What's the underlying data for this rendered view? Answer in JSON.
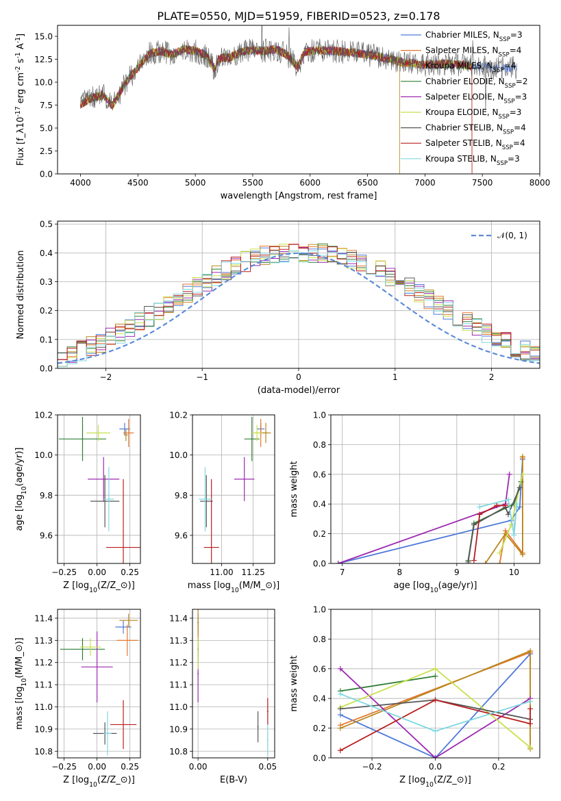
{
  "figure": {
    "title": "PLATE=0550, MJD=51959, FIBERID=0523, z=0.178"
  },
  "colors": {
    "models": [
      "#4e79d9",
      "#e4762c",
      "#b8861b",
      "#2e7d32",
      "#9c27b0",
      "#c8e04a",
      "#555555",
      "#b71c1c",
      "#7fd8e0"
    ],
    "grid": "#b0b0b0",
    "gaussian": "#5b8bd9"
  },
  "chart_data": [
    {
      "type": "line",
      "id": "spectrum",
      "xlabel": "wavelength [Angstrom, rest frame]",
      "ylabel": "Flux [f$_\\lambda$10$^{-17}$ erg cm$^{-2}$ s$^{-1}$ A$^{-1}$]",
      "xlim": [
        3800,
        8000
      ],
      "ylim": [
        0,
        16.2
      ],
      "xticks": [
        4000,
        4500,
        5000,
        5500,
        6000,
        6500,
        7000,
        7500,
        8000
      ],
      "yticks": [
        0.0,
        2.5,
        5.0,
        7.5,
        10.0,
        12.5,
        15.0
      ],
      "ytick_labels": [
        "0.0",
        "2.5",
        "5.0",
        "7.5",
        "10.0",
        "12.5",
        "15.0"
      ],
      "grid": false,
      "legend_position": "right",
      "legend": [
        {
          "label": "Chabrier MILES, N$_{SSP}$=3"
        },
        {
          "label": "Salpeter MILES, N$_{SSP}$=4"
        },
        {
          "label": "Kroupa MILES, N$_{SSP}$=4"
        },
        {
          "label": "Chabrier ELODIE, N$_{SSP}$=2"
        },
        {
          "label": "Salpeter ELODIE, N$_{SSP}$=3"
        },
        {
          "label": "Kroupa ELODIE, N$_{SSP}$=3"
        },
        {
          "label": "Chabrier STELIB, N$_{SSP}$=4"
        },
        {
          "label": "Salpeter STELIB, N$_{SSP}$=4"
        },
        {
          "label": "Kroupa STELIB, N$_{SSP}$=3"
        }
      ],
      "continuum": [
        [
          4000,
          7.6
        ],
        [
          4100,
          8.3
        ],
        [
          4200,
          8.6
        ],
        [
          4280,
          7.4
        ],
        [
          4300,
          7.9
        ],
        [
          4400,
          10.1
        ],
        [
          4500,
          11.6
        ],
        [
          4600,
          13.1
        ],
        [
          4700,
          13.4
        ],
        [
          4800,
          13.0
        ],
        [
          4900,
          13.6
        ],
        [
          5000,
          13.4
        ],
        [
          5100,
          12.9
        ],
        [
          5170,
          11.3
        ],
        [
          5200,
          12.6
        ],
        [
          5300,
          12.7
        ],
        [
          5400,
          13.3
        ],
        [
          5500,
          13.5
        ],
        [
          5600,
          13.4
        ],
        [
          5700,
          13.6
        ],
        [
          5800,
          13.0
        ],
        [
          5893,
          11.6
        ],
        [
          5950,
          13.3
        ],
        [
          6050,
          13.5
        ],
        [
          6200,
          13.4
        ],
        [
          6400,
          13.2
        ],
        [
          6600,
          12.8
        ],
        [
          6800,
          12.2
        ],
        [
          7000,
          11.9
        ],
        [
          7200,
          12.0
        ],
        [
          7400,
          11.8
        ],
        [
          7600,
          11.5
        ],
        [
          7800,
          11.6
        ]
      ],
      "visible_range_by_series": [
        [
          4000,
          7800
        ],
        [
          4000,
          7410
        ],
        [
          4000,
          6780
        ],
        [
          4000,
          7400
        ],
        [
          4000,
          7400
        ],
        [
          4000,
          7400
        ],
        [
          4000,
          7800
        ],
        [
          4000,
          7410
        ],
        [
          4000,
          7400
        ]
      ]
    },
    {
      "type": "histogram",
      "id": "residuals",
      "xlabel": "(data-model)/error",
      "ylabel": "Normed distribution",
      "xlim": [
        -2.5,
        2.5
      ],
      "ylim": [
        0,
        0.51
      ],
      "xticks": [
        -2,
        -1,
        0,
        1,
        2
      ],
      "xtick_labels": [
        "−2",
        "−1",
        "0",
        "1",
        "2"
      ],
      "yticks": [
        0.0,
        0.1,
        0.2,
        0.3,
        0.4,
        0.5
      ],
      "ytick_labels": [
        "0.0",
        "0.1",
        "0.2",
        "0.3",
        "0.4",
        "0.5"
      ],
      "grid": true,
      "bin_width": 0.1,
      "legend_position": "top-right",
      "legend": [
        {
          "label": "𝒩(0, 1)"
        }
      ],
      "base_density": [
        0.018,
        0.02,
        0.024,
        0.032,
        0.04,
        0.05,
        0.06,
        0.075,
        0.09,
        0.105,
        0.12,
        0.14,
        0.16,
        0.18,
        0.2,
        0.22,
        0.24,
        0.26,
        0.28,
        0.3,
        0.32,
        0.34,
        0.355,
        0.37,
        0.38,
        0.39,
        0.395,
        0.4,
        0.4,
        0.4,
        0.4,
        0.4,
        0.395,
        0.39,
        0.38,
        0.37,
        0.355,
        0.34,
        0.32,
        0.3,
        0.28,
        0.26,
        0.24,
        0.22,
        0.2,
        0.18,
        0.16,
        0.14,
        0.12,
        0.105,
        0.09,
        0.075,
        0.06,
        0.05,
        0.04,
        0.032,
        0.026,
        0.022,
        0.02
      ]
    },
    {
      "type": "scatter",
      "id": "age-vs-Z",
      "xlabel": "Z [log$_{10}$(Z/Z$_\\odot$)]",
      "ylabel": "age  [log$_{10}$(age/yr)]",
      "xlim": [
        -0.3,
        0.33
      ],
      "ylim": [
        9.46,
        10.2
      ],
      "xticks": [
        -0.25,
        0.0,
        0.25
      ],
      "xtick_labels": [
        "−0.25",
        "0.00",
        "0.25"
      ],
      "yticks": [
        9.6,
        9.8,
        10.0,
        10.2
      ],
      "ytick_labels": [
        "9.6",
        "9.8",
        "10.0",
        "10.2"
      ],
      "grid": true,
      "points": [
        {
          "x": 0.21,
          "y": 10.13,
          "xerr": 0.04,
          "yerr": 0.03
        },
        {
          "x": 0.24,
          "y": 10.11,
          "xerr": 0.04,
          "yerr": 0.07
        },
        {
          "x": 0.22,
          "y": 10.1,
          "xerr": 0.015,
          "yerr": 0.03
        },
        {
          "x": -0.11,
          "y": 10.08,
          "xerr": 0.18,
          "yerr": 0.11
        },
        {
          "x": 0.05,
          "y": 9.88,
          "xerr": 0.12,
          "yerr": 0.11
        },
        {
          "x": 0.01,
          "y": 10.11,
          "xerr": 0.09,
          "yerr": 0.04
        },
        {
          "x": 0.06,
          "y": 9.77,
          "xerr": 0.11,
          "yerr": 0.13
        },
        {
          "x": 0.2,
          "y": 9.54,
          "xerr": 0.13,
          "yerr": 0.34
        },
        {
          "x": 0.09,
          "y": 9.78,
          "xerr": 0.04,
          "yerr": 0.16
        }
      ]
    },
    {
      "type": "scatter",
      "id": "age-vs-mass",
      "xlabel": "mass [log$_{10}$(M/M$_\\odot$)]",
      "ylabel": "",
      "xlim": [
        10.77,
        11.42
      ],
      "ylim": [
        9.46,
        10.2
      ],
      "xticks": [
        11.0,
        11.25
      ],
      "xtick_labels": [
        "11.00",
        "11.25"
      ],
      "yticks": [
        9.6,
        9.8,
        10.0,
        10.2
      ],
      "ytick_labels": [
        "9.6",
        "9.8",
        "10.0",
        "10.2"
      ],
      "grid": true,
      "points": [
        {
          "x": 11.31,
          "y": 10.13,
          "xerr": 0.03,
          "yerr": 0.03
        },
        {
          "x": 11.31,
          "y": 10.11,
          "xerr": 0.05,
          "yerr": 0.07
        },
        {
          "x": 11.35,
          "y": 10.11,
          "xerr": 0.04,
          "yerr": 0.05
        },
        {
          "x": 11.24,
          "y": 10.08,
          "xerr": 0.06,
          "yerr": 0.11
        },
        {
          "x": 11.18,
          "y": 9.88,
          "xerr": 0.08,
          "yerr": 0.11
        },
        {
          "x": 11.28,
          "y": 10.11,
          "xerr": 0.04,
          "yerr": 0.04
        },
        {
          "x": 10.88,
          "y": 9.77,
          "xerr": 0.05,
          "yerr": 0.13
        },
        {
          "x": 10.92,
          "y": 9.54,
          "xerr": 0.06,
          "yerr": 0.34
        },
        {
          "x": 10.87,
          "y": 9.78,
          "xerr": 0.05,
          "yerr": 0.16
        }
      ]
    },
    {
      "type": "line",
      "id": "mass-weight-vs-age",
      "xlabel": "age  [log$_{10}$(age/yr)]",
      "ylabel": "mass weight",
      "xlim": [
        6.8,
        10.45
      ],
      "ylim": [
        0,
        1.0
      ],
      "xticks": [
        7,
        8,
        9,
        10
      ],
      "xtick_labels": [
        "7",
        "8",
        "9",
        "10"
      ],
      "yticks": [
        0.0,
        0.2,
        0.4,
        0.6,
        0.8,
        1.0
      ],
      "ytick_labels": [
        "0.0",
        "0.2",
        "0.4",
        "0.6",
        "0.8",
        "1.0"
      ],
      "grid": true,
      "series": [
        {
          "x": [
            6.93,
            9.95,
            10.1,
            10.15
          ],
          "y": [
            0.0,
            0.29,
            0.38,
            0.7
          ]
        },
        {
          "x": [
            9.75,
            9.85,
            10.15,
            10.15
          ],
          "y": [
            0.0,
            0.22,
            0.07,
            0.71
          ]
        },
        {
          "x": [
            9.5,
            9.85,
            10.15,
            10.15
          ],
          "y": [
            0.0,
            0.2,
            0.06,
            0.72
          ]
        },
        {
          "x": [
            9.2,
            9.3,
            10.0,
            10.12
          ],
          "y": [
            0.02,
            0.27,
            0.4,
            0.55
          ]
        },
        {
          "x": [
            6.93,
            9.85,
            9.92
          ],
          "y": [
            0.0,
            0.4,
            0.6
          ]
        },
        {
          "x": [
            9.75,
            9.95,
            10.15
          ],
          "y": [
            0.07,
            0.26,
            0.6
          ]
        },
        {
          "x": [
            9.2,
            9.3,
            9.85,
            9.9,
            10.1
          ],
          "y": [
            0.01,
            0.26,
            0.38,
            0.33,
            0.51
          ]
        },
        {
          "x": [
            9.3,
            9.4,
            9.7,
            9.85
          ],
          "y": [
            0.02,
            0.33,
            0.39,
            0.39
          ]
        },
        {
          "x": [
            9.4,
            9.9,
            10.0,
            10.05
          ],
          "y": [
            0.38,
            0.43,
            0.19,
            0.4
          ]
        }
      ]
    },
    {
      "type": "scatter",
      "id": "mass-vs-Z",
      "xlabel": "Z [log$_{10}$(Z/Z$_\\odot$)]",
      "ylabel": "mass [log$_{10}$(M/M$_\\odot$)]",
      "xlim": [
        -0.3,
        0.33
      ],
      "ylim": [
        10.77,
        11.44
      ],
      "xticks": [
        -0.25,
        0.0,
        0.25
      ],
      "xtick_labels": [
        "−0.25",
        "0.00",
        "0.25"
      ],
      "yticks": [
        10.8,
        10.9,
        11.0,
        11.1,
        11.2,
        11.3,
        11.4
      ],
      "ytick_labels": [
        "10.8",
        "10.9",
        "11.0",
        "11.1",
        "11.2",
        "11.3",
        "11.4"
      ],
      "grid": true,
      "points": [
        {
          "x": 0.2,
          "y": 11.36,
          "xerr": 0.06,
          "yerr": 0.03
        },
        {
          "x": 0.23,
          "y": 11.3,
          "xerr": 0.08,
          "yerr": 0.07
        },
        {
          "x": 0.24,
          "y": 11.39,
          "xerr": 0.07,
          "yerr": 0.03
        },
        {
          "x": -0.11,
          "y": 11.26,
          "xerr": 0.17,
          "yerr": 0.05
        },
        {
          "x": 0.0,
          "y": 11.18,
          "xerr": 0.12,
          "yerr": 0.16
        },
        {
          "x": -0.05,
          "y": 11.27,
          "xerr": 0.08,
          "yerr": 0.04
        },
        {
          "x": 0.06,
          "y": 10.88,
          "xerr": 0.09,
          "yerr": 0.05
        },
        {
          "x": 0.2,
          "y": 10.92,
          "xerr": 0.1,
          "yerr": 0.11
        },
        {
          "x": 0.08,
          "y": 10.88,
          "xerr": 0.03,
          "yerr": 0.1
        }
      ]
    },
    {
      "type": "scatter",
      "id": "mass-vs-EBV",
      "xlabel": "E(B-V)",
      "ylabel": "",
      "xlim": [
        -0.004,
        0.055
      ],
      "ylim": [
        10.77,
        11.44
      ],
      "xticks": [
        0.0,
        0.05
      ],
      "xtick_labels": [
        "0.00",
        "0.05"
      ],
      "yticks": [
        10.8,
        10.9,
        11.0,
        11.1,
        11.2,
        11.3,
        11.4
      ],
      "ytick_labels": [
        "10.8",
        "10.9",
        "11.0",
        "11.1",
        "11.2",
        "11.3",
        "11.4"
      ],
      "grid": true,
      "points": [
        {
          "x": 0.0,
          "y": 11.38,
          "xerr": 0.0005,
          "yerr": 0.04
        },
        {
          "x": 0.0,
          "y": 11.3,
          "xerr": 0.0005,
          "yerr": 0.07
        },
        {
          "x": 0.0,
          "y": 11.38,
          "xerr": 0.0005,
          "yerr": 0.06
        },
        {
          "x": 0.0,
          "y": 11.26,
          "xerr": 0.0005,
          "yerr": 0.05
        },
        {
          "x": 0.0,
          "y": 11.15,
          "xerr": 0.0005,
          "yerr": 0.13
        },
        {
          "x": 0.0,
          "y": 11.24,
          "xerr": 0.0005,
          "yerr": 0.07
        },
        {
          "x": 0.043,
          "y": 10.91,
          "xerr": 0.0005,
          "yerr": 0.07
        },
        {
          "x": 0.05,
          "y": 10.98,
          "xerr": 0.0005,
          "yerr": 0.06
        },
        {
          "x": 0.05,
          "y": 10.85,
          "xerr": 0.0005,
          "yerr": 0.07
        }
      ]
    },
    {
      "type": "line",
      "id": "mass-weight-vs-Z",
      "xlabel": "Z [log$_{10}$(Z/Z$_\\odot$)]",
      "ylabel": "mass weight",
      "xlim": [
        -0.33,
        0.33
      ],
      "ylim": [
        0,
        1.0
      ],
      "xticks": [
        -0.2,
        0.0,
        0.2
      ],
      "xtick_labels": [
        "−0.2",
        "0.0",
        "0.2"
      ],
      "yticks": [
        0.0,
        0.2,
        0.4,
        0.6,
        0.8,
        1.0
      ],
      "ytick_labels": [
        "0.0",
        "0.2",
        "0.4",
        "0.6",
        "0.8",
        "1.0"
      ],
      "grid": true,
      "series": [
        {
          "x": [
            -0.3,
            0.0,
            0.3
          ],
          "y": [
            0.29,
            0.0,
            0.7
          ]
        },
        {
          "x": [
            -0.3,
            0.3,
            0.3
          ],
          "y": [
            0.22,
            0.71,
            0.07
          ]
        },
        {
          "x": [
            -0.3,
            0.3,
            0.3
          ],
          "y": [
            0.2,
            0.72,
            0.06
          ]
        },
        {
          "x": [
            -0.3,
            0.0
          ],
          "y": [
            0.45,
            0.55
          ]
        },
        {
          "x": [
            -0.3,
            0.0,
            0.3
          ],
          "y": [
            0.6,
            0.0,
            0.4
          ]
        },
        {
          "x": [
            -0.3,
            0.0,
            0.3
          ],
          "y": [
            0.34,
            0.6,
            0.07
          ]
        },
        {
          "x": [
            -0.3,
            0.0,
            0.3
          ],
          "y": [
            0.33,
            0.39,
            0.26
          ]
        },
        {
          "x": [
            -0.3,
            0.0,
            0.3,
            0.3
          ],
          "y": [
            0.05,
            0.39,
            0.23,
            0.33
          ]
        },
        {
          "x": [
            -0.3,
            0.0,
            0.3
          ],
          "y": [
            0.43,
            0.18,
            0.38
          ]
        }
      ]
    }
  ]
}
